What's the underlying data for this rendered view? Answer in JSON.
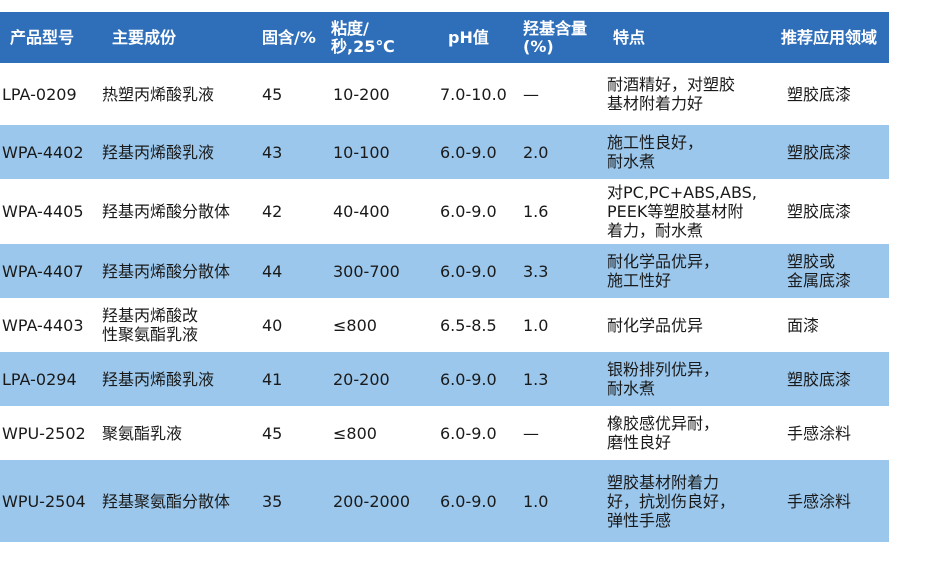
{
  "header": {
    "product_model": "产品型号",
    "main_component": "主要成份",
    "solid_content": "固含/%",
    "viscosity": "粘度/秒,25℃",
    "ph": "pH值",
    "hydroxyl_content": "羟基含量\n(%)",
    "features": "特点",
    "application": "推荐应用领域"
  },
  "rows": [
    {
      "model": "LPA-0209",
      "component": "热塑丙烯酸乳液",
      "solid": "45",
      "viscosity": "10-200",
      "ph": "7.0-10.0",
      "hydroxyl": "—",
      "features": "耐酒精好，对塑胶\n基材附着力好",
      "application": "塑胶底漆"
    },
    {
      "model": "WPA-4402",
      "component": "羟基丙烯酸乳液",
      "solid": "43",
      "viscosity": "10-100",
      "ph": "6.0-9.0",
      "hydroxyl": "2.0",
      "features": "施工性良好，\n耐水煮",
      "application": "塑胶底漆"
    },
    {
      "model": "WPA-4405",
      "component": "羟基丙烯酸分散体",
      "solid": "42",
      "viscosity": "40-400",
      "ph": "6.0-9.0",
      "hydroxyl": "1.6",
      "features": "对PC,PC+ABS,ABS,\nPEEK等塑胶基材附\n着力，耐水煮",
      "application": "塑胶底漆"
    },
    {
      "model": "WPA-4407",
      "component": "羟基丙烯酸分散体",
      "solid": "44",
      "viscosity": "300-700",
      "ph": "6.0-9.0",
      "hydroxyl": "3.3",
      "features": "耐化学品优异，\n施工性好",
      "application": "塑胶或\n金属底漆"
    },
    {
      "model": "WPA-4403",
      "component": "羟基丙烯酸改\n性聚氨酯乳液",
      "solid": "40",
      "viscosity": "≤800",
      "ph": "6.5-8.5",
      "hydroxyl": "1.0",
      "features": "耐化学品优异",
      "application": "面漆"
    },
    {
      "model": "LPA-0294",
      "component": "羟基丙烯酸乳液",
      "solid": "41",
      "viscosity": "20-200",
      "ph": "6.0-9.0",
      "hydroxyl": "1.3",
      "features": "银粉排列优异，\n耐水煮",
      "application": "塑胶底漆"
    },
    {
      "model": "WPU-2502",
      "component": "聚氨酯乳液",
      "solid": "45",
      "viscosity": "≤800",
      "ph": "6.0-9.0",
      "hydroxyl": "—",
      "features": "橡胶感优异耐，\n磨性良好",
      "application": "手感涂料"
    },
    {
      "model": "WPU-2504",
      "component": "羟基聚氨酯分散体",
      "solid": "35",
      "viscosity": "200-2000",
      "ph": "6.0-9.0",
      "hydroxyl": "1.0",
      "features": "塑胶基材附着力\n好，抗划伤良好，\n弹性手感",
      "application": "手感涂料"
    }
  ]
}
